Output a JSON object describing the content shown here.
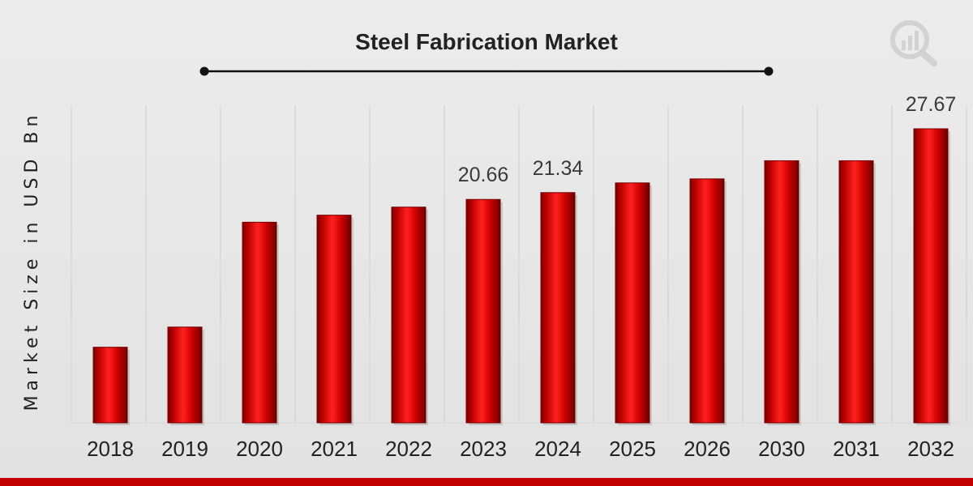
{
  "colors": {
    "bar_main": "#d10000",
    "bar_dark": "#7a0000",
    "bar_light": "#ff2a2a",
    "gridline": "#cfcfcf",
    "decor_line": "#111111",
    "footer_bar": "#c40000"
  },
  "logo": {
    "icon": "magnifier-bar-chart-icon"
  },
  "chart_data": {
    "type": "bar",
    "title": "Steel Fabrication Market",
    "ylabel": "Market Size in USD Bn",
    "xlabel": "",
    "categories": [
      "2018",
      "2019",
      "2020",
      "2021",
      "2022",
      "2023",
      "2024",
      "2025",
      "2026",
      "2030",
      "2031",
      "2032"
    ],
    "values": [
      6.0,
      8.0,
      18.4,
      19.1,
      19.9,
      20.66,
      21.34,
      22.3,
      22.7,
      24.5,
      24.5,
      27.67
    ],
    "data_labels": {
      "5": "20.66",
      "6": "21.34",
      "11": "27.67"
    },
    "ylim": [
      -1.5,
      30
    ],
    "grid": true,
    "legend": "none"
  }
}
